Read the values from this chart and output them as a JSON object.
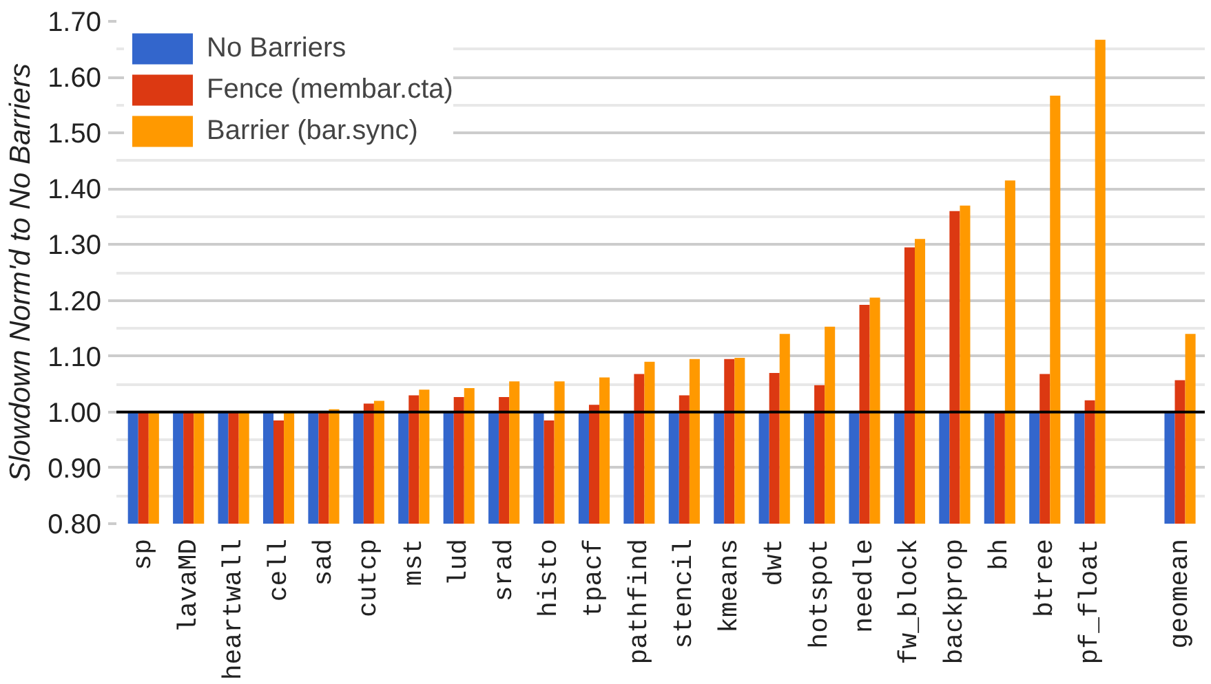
{
  "chart_data": {
    "type": "bar",
    "ylabel": "Slowdown Norm'd to No Barriers",
    "categories": [
      "sp",
      "lavaMD",
      "heartwall",
      "cell",
      "sad",
      "cutcp",
      "mst",
      "lud",
      "srad",
      "histo",
      "tpacf",
      "pathfind",
      "stencil",
      "kmeans",
      "dwt",
      "hotspot",
      "needle",
      "fw_block",
      "backprop",
      "bh",
      "btree",
      "pf_float",
      null,
      "geomean"
    ],
    "series": [
      {
        "name": "No Barriers",
        "color": "#3366cc",
        "values": [
          1.0,
          1.0,
          1.0,
          1.0,
          1.0,
          1.0,
          1.0,
          1.0,
          1.0,
          1.0,
          1.0,
          1.0,
          1.0,
          1.0,
          1.0,
          1.0,
          1.0,
          1.0,
          1.0,
          1.0,
          1.0,
          1.0,
          null,
          1.0
        ]
      },
      {
        "name": "Fence (membar.cta)",
        "color": "#dc3912",
        "values": [
          1.0,
          1.0,
          1.0,
          0.985,
          1.0,
          1.015,
          1.03,
          1.027,
          1.027,
          0.985,
          1.013,
          1.068,
          1.03,
          1.095,
          1.07,
          1.048,
          1.192,
          1.295,
          1.36,
          1.0,
          1.068,
          1.021,
          null,
          1.057
        ]
      },
      {
        "name": "Barrier (bar.sync)",
        "color": "#ff9900",
        "values": [
          1.0,
          1.0,
          1.0,
          1.0,
          1.005,
          1.02,
          1.04,
          1.043,
          1.055,
          1.055,
          1.062,
          1.09,
          1.095,
          1.097,
          1.14,
          1.153,
          1.205,
          1.31,
          1.37,
          1.415,
          1.567,
          1.667,
          null,
          1.14
        ]
      }
    ],
    "ylim": [
      0.8,
      1.7
    ],
    "yticks": [
      {
        "value": 0.8,
        "label": "0.80"
      },
      {
        "value": 0.9,
        "label": "0.90"
      },
      {
        "value": 1.0,
        "label": "1.00"
      },
      {
        "value": 1.1,
        "label": "1.10"
      },
      {
        "value": 1.2,
        "label": "1.20"
      },
      {
        "value": 1.3,
        "label": "1.30"
      },
      {
        "value": 1.4,
        "label": "1.40"
      },
      {
        "value": 1.5,
        "label": "1.50"
      },
      {
        "value": 1.6,
        "label": "1.60"
      },
      {
        "value": 1.7,
        "label": "1.70"
      }
    ],
    "ref_lines": [
      {
        "axis": "y",
        "value": 1.0,
        "color": "#000000"
      }
    ],
    "grid": "y",
    "legend": "top left"
  }
}
